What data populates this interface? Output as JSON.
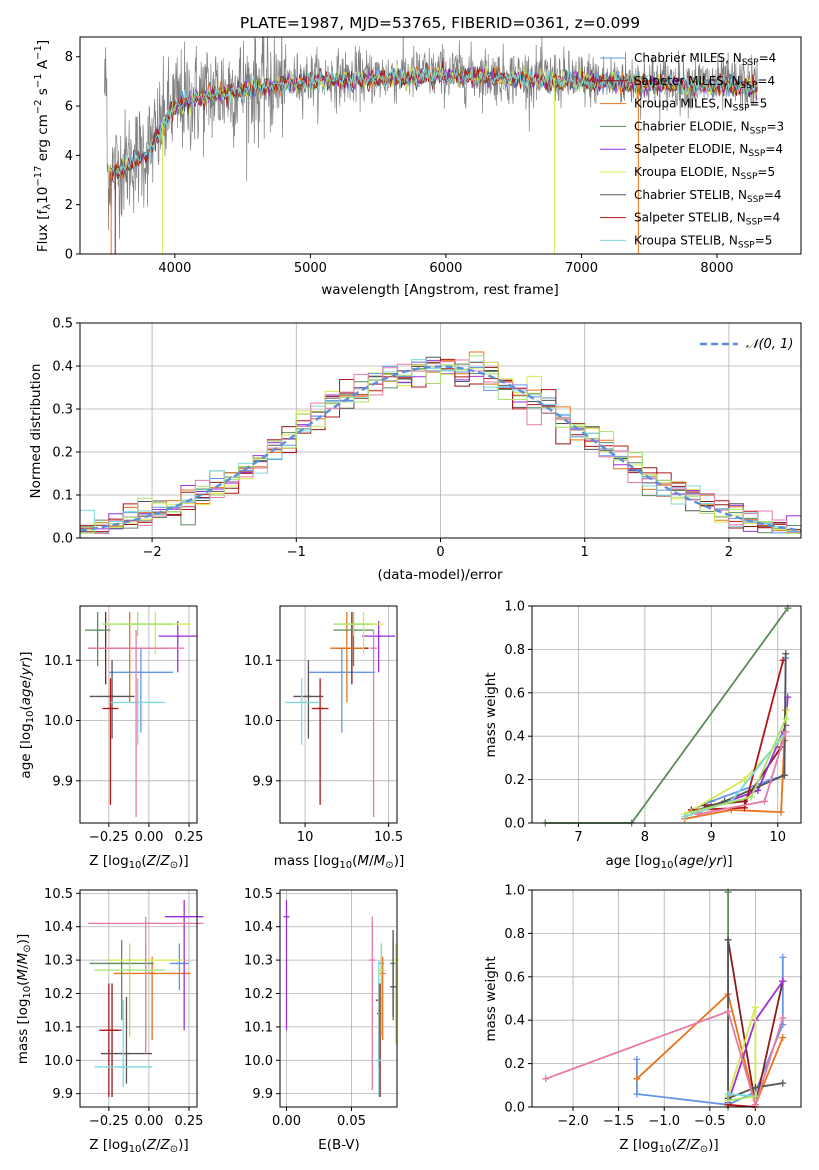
{
  "colors": [
    "#6495ed",
    "#8b1a1a",
    "#e8731a",
    "#5b8c5a",
    "#9b30d9",
    "#d6e84c",
    "#555555",
    "#b31515",
    "#7dd9dc",
    "#e87aa8",
    "#a6e36a"
  ],
  "chart_data": [
    {
      "type": "line",
      "title": "PLATE=1987, MJD=53765, FIBERID=0361, z=0.099",
      "xlabel": "wavelength [Angstrom, rest frame]",
      "ylabel": "Flux [f_λ 10^-17 erg cm^-2 s^-1 A^-1]",
      "xlim": [
        3300,
        8620
      ],
      "ylim": [
        0,
        8.8
      ],
      "xticks": [
        4000,
        5000,
        6000,
        7000,
        8000
      ],
      "yticks": [
        0,
        2,
        4,
        6,
        8
      ],
      "spectrum_continuum": [
        [
          3500,
          3.2
        ],
        [
          3800,
          4.2
        ],
        [
          4000,
          6.1
        ],
        [
          4300,
          6.6
        ],
        [
          4700,
          6.9
        ],
        [
          5000,
          7.1
        ],
        [
          5500,
          7.2
        ],
        [
          6000,
          7.35
        ],
        [
          6500,
          7.2
        ],
        [
          7000,
          7.1
        ],
        [
          7500,
          7.0
        ],
        [
          8000,
          6.9
        ],
        [
          8300,
          6.85
        ]
      ],
      "legend_position": "upper right",
      "series": [
        {
          "name": "Chabrier MILES",
          "nssp": "4"
        },
        {
          "name": "Salpeter MILES",
          "nssp": "4"
        },
        {
          "name": "Kroupa MILES",
          "nssp": "5"
        },
        {
          "name": "Chabrier ELODIE",
          "nssp": "3"
        },
        {
          "name": "Salpeter ELODIE",
          "nssp": "4"
        },
        {
          "name": "Kroupa ELODIE",
          "nssp": "5"
        },
        {
          "name": "Chabrier STELIB",
          "nssp": "4"
        },
        {
          "name": "Salpeter STELIB",
          "nssp": "4"
        },
        {
          "name": "Kroupa STELIB",
          "nssp": "5"
        }
      ]
    },
    {
      "type": "histogram",
      "xlabel": "(data-model)/error",
      "ylabel": "Normed distribution",
      "xlim": [
        -2.5,
        2.5
      ],
      "ylim": [
        0,
        0.5
      ],
      "xticks": [
        -2,
        -1,
        0,
        1,
        2
      ],
      "yticks": [
        0.0,
        0.1,
        0.2,
        0.3,
        0.4,
        0.5
      ],
      "legend": "N(0, 1)",
      "legend_position": "upper right",
      "bin_width": 0.1,
      "bin_start": -2.5
    },
    {
      "type": "errorbar",
      "xlabel": "Z [log10(Z/Z☉)]",
      "ylabel": "age  [log10(age/yr)]",
      "xlim": [
        -0.43,
        0.3
      ],
      "ylim": [
        9.83,
        10.19
      ],
      "xticks": [
        -0.25,
        0.0,
        0.25
      ],
      "xticklabels": [
        "−0.25",
        "0.00",
        "0.25"
      ],
      "yticks": [
        9.9,
        10.0,
        10.1
      ],
      "points": [
        {
          "x": -0.05,
          "y": 10.08,
          "xerr": 0.2,
          "yerr": [
            0.1,
            0.04
          ]
        },
        {
          "x": -0.27,
          "y": 10.12,
          "xerr": 0.08,
          "yerr": [
            0.06,
            0.06
          ]
        },
        {
          "x": -0.12,
          "y": 10.12,
          "xerr": 0.25,
          "yerr": [
            0.09,
            0.06
          ]
        },
        {
          "x": -0.32,
          "y": 10.15,
          "xerr": 0.08,
          "yerr": [
            0.06,
            0.03
          ]
        },
        {
          "x": 0.18,
          "y": 10.14,
          "xerr": 0.12,
          "yerr": [
            0.06,
            0.025
          ]
        },
        {
          "x": 0.04,
          "y": 10.16,
          "xerr": 0.22,
          "yerr": [
            0.05,
            0.02
          ]
        },
        {
          "x": -0.23,
          "y": 10.04,
          "xerr": 0.14,
          "yerr": [
            0.07,
            0.06
          ]
        },
        {
          "x": -0.24,
          "y": 10.02,
          "xerr": 0.05,
          "yerr": [
            0.16,
            0.05
          ]
        },
        {
          "x": -0.07,
          "y": 10.03,
          "xerr": 0.17,
          "yerr": [
            0.07,
            0.04
          ]
        },
        {
          "x": -0.08,
          "y": 10.12,
          "xerr": 0.3,
          "yerr": [
            0.28,
            0.03
          ]
        },
        {
          "x": -0.07,
          "y": 10.16,
          "xerr": 0.22,
          "yerr": [
            0.02,
            0.02
          ]
        }
      ]
    },
    {
      "type": "errorbar",
      "xlabel": "mass [log10(M/M☉)]",
      "ylabel": "",
      "xlim": [
        9.85,
        10.55
      ],
      "ylim": [
        9.83,
        10.19
      ],
      "xticks": [
        10.0,
        10.5
      ],
      "yticks": [
        9.9,
        10.0,
        10.1
      ],
      "points": [
        {
          "x": 10.22,
          "y": 10.08,
          "xerr": 0.2,
          "yerr": [
            0.1,
            0.04
          ]
        },
        {
          "x": 10.28,
          "y": 10.12,
          "xerr": 0.1,
          "yerr": [
            0.06,
            0.06
          ]
        },
        {
          "x": 10.25,
          "y": 10.12,
          "xerr": 0.1,
          "yerr": [
            0.09,
            0.06
          ]
        },
        {
          "x": 10.29,
          "y": 10.15,
          "xerr": 0.12,
          "yerr": [
            0.06,
            0.03
          ]
        },
        {
          "x": 10.44,
          "y": 10.14,
          "xerr": 0.1,
          "yerr": [
            0.06,
            0.025
          ]
        },
        {
          "x": 10.35,
          "y": 10.16,
          "xerr": 0.12,
          "yerr": [
            0.05,
            0.02
          ]
        },
        {
          "x": 10.02,
          "y": 10.04,
          "xerr": 0.09,
          "yerr": [
            0.07,
            0.06
          ]
        },
        {
          "x": 10.09,
          "y": 10.02,
          "xerr": 0.05,
          "yerr": [
            0.16,
            0.05
          ]
        },
        {
          "x": 9.98,
          "y": 10.03,
          "xerr": 0.1,
          "yerr": [
            0.07,
            0.04
          ]
        },
        {
          "x": 10.41,
          "y": 10.12,
          "xerr": 0.02,
          "yerr": [
            0.28,
            0.03
          ]
        },
        {
          "x": 10.29,
          "y": 10.16,
          "xerr": 0.12,
          "yerr": [
            0.02,
            0.02
          ]
        }
      ]
    },
    {
      "type": "line",
      "xlabel": "age  [log10(age/yr)]",
      "ylabel": "mass weight",
      "xlim": [
        6.3,
        10.35
      ],
      "ylim": [
        0,
        1
      ],
      "xticks": [
        7,
        8,
        9,
        10
      ],
      "yticks": [
        0.0,
        0.2,
        0.4,
        0.6,
        0.8,
        1.0
      ],
      "series": [
        {
          "x": [
            8.7,
            9.0,
            9.9,
            10.1,
            10.12
          ],
          "y": [
            0.06,
            0.1,
            0.2,
            0.22,
            0.76
          ]
        },
        {
          "x": [
            8.9,
            9.5,
            10.05,
            10.1
          ],
          "y": [
            0.08,
            0.1,
            0.35,
            0.42
          ]
        },
        {
          "x": [
            8.6,
            9.3,
            10.05,
            10.1,
            10.12
          ],
          "y": [
            0.02,
            0.06,
            0.05,
            0.38,
            0.52
          ]
        },
        {
          "x": [
            6.5,
            7.8,
            10.15
          ],
          "y": [
            0.0,
            0.0,
            0.99
          ]
        },
        {
          "x": [
            8.8,
            9.7,
            10.12,
            10.15
          ],
          "y": [
            0.05,
            0.15,
            0.45,
            0.58
          ]
        },
        {
          "x": [
            8.6,
            9.5,
            10.1,
            10.14
          ],
          "y": [
            0.04,
            0.2,
            0.4,
            0.52
          ]
        },
        {
          "x": [
            8.7,
            9.2,
            10.1,
            10.12
          ],
          "y": [
            0.05,
            0.1,
            0.22,
            0.78
          ]
        },
        {
          "x": [
            8.7,
            9.5,
            10.08
          ],
          "y": [
            0.06,
            0.07,
            0.75
          ]
        },
        {
          "x": [
            8.6,
            9.3,
            10.12
          ],
          "y": [
            0.03,
            0.1,
            0.42
          ]
        },
        {
          "x": [
            8.8,
            9.8,
            10.12
          ],
          "y": [
            0.04,
            0.1,
            0.42
          ]
        },
        {
          "x": [
            8.7,
            9.6,
            10.12
          ],
          "y": [
            0.05,
            0.12,
            0.48
          ]
        }
      ]
    },
    {
      "type": "errorbar",
      "xlabel": "Z [log10(Z/Z☉)]",
      "ylabel": "mass [log10(M/M☉)]",
      "xlim": [
        -0.43,
        0.3
      ],
      "ylim": [
        9.86,
        10.51
      ],
      "xticks": [
        -0.25,
        0.0,
        0.25
      ],
      "xticklabels": [
        "−0.25",
        "0.00",
        "0.25"
      ],
      "yticks": [
        9.9,
        10.0,
        10.1,
        10.2,
        10.3,
        10.4,
        10.5
      ],
      "points": [
        {
          "x": 0.19,
          "y": 10.29,
          "xerr": 0.06,
          "yerr": [
            0.08,
            0.06
          ]
        },
        {
          "x": -0.23,
          "y": 10.09,
          "xerr": 0.06,
          "yerr": [
            0.2,
            0.14
          ]
        },
        {
          "x": 0.02,
          "y": 10.26,
          "xerr": 0.24,
          "yerr": [
            0.2,
            0.05
          ]
        },
        {
          "x": -0.17,
          "y": 10.29,
          "xerr": 0.2,
          "yerr": [
            0.17,
            0.07
          ]
        },
        {
          "x": 0.22,
          "y": 10.43,
          "xerr": 0.12,
          "yerr": [
            0.34,
            0.05
          ]
        },
        {
          "x": -0.02,
          "y": 10.3,
          "xerr": 0.24,
          "yerr": [
            0.25,
            0.05
          ]
        },
        {
          "x": -0.14,
          "y": 10.02,
          "xerr": 0.16,
          "yerr": [
            0.09,
            0.17
          ]
        },
        {
          "x": -0.25,
          "y": 10.09,
          "xerr": 0.06,
          "yerr": [
            0.2,
            0.14
          ]
        },
        {
          "x": -0.16,
          "y": 9.98,
          "xerr": 0.18,
          "yerr": [
            0.06,
            0.2
          ]
        },
        {
          "x": -0.02,
          "y": 10.41,
          "xerr": 0.36,
          "yerr": [
            0.39,
            0.02
          ]
        },
        {
          "x": -0.12,
          "y": 10.27,
          "xerr": 0.22,
          "yerr": [
            0.2,
            0.08
          ]
        }
      ]
    },
    {
      "type": "errorbar",
      "xlabel": "E(B-V)",
      "ylabel": "",
      "xlim": [
        -0.005,
        0.085
      ],
      "ylim": [
        9.86,
        10.51
      ],
      "xticks": [
        0.0,
        0.05
      ],
      "xticklabels": [
        "0.00",
        "0.05"
      ],
      "yticks": [
        9.9,
        10.0,
        10.1,
        10.2,
        10.3,
        10.4,
        10.5
      ],
      "points": [
        {
          "x": 0.073,
          "y": 10.29,
          "yerr": [
            0.08,
            0.06
          ]
        },
        {
          "x": 0.072,
          "y": 10.14,
          "yerr": [
            0.25,
            0.09
          ]
        },
        {
          "x": 0.074,
          "y": 10.26,
          "yerr": [
            0.2,
            0.05
          ]
        },
        {
          "x": 0.082,
          "y": 10.29,
          "yerr": [
            0.17,
            0.07
          ]
        },
        {
          "x": 0.0,
          "y": 10.43,
          "yerr": [
            0.34,
            0.05
          ]
        },
        {
          "x": 0.084,
          "y": 10.3,
          "yerr": [
            0.25,
            0.05
          ]
        },
        {
          "x": 0.082,
          "y": 10.22,
          "yerr": [
            0.09,
            0.17
          ]
        },
        {
          "x": 0.071,
          "y": 10.18,
          "yerr": [
            0.2,
            0.05
          ]
        },
        {
          "x": 0.071,
          "y": 10.0,
          "yerr": [
            0.11,
            0.3
          ]
        },
        {
          "x": 0.066,
          "y": 10.3,
          "yerr": [
            0.39,
            0.13
          ]
        },
        {
          "x": 0.073,
          "y": 10.27,
          "yerr": [
            0.2,
            0.08
          ]
        }
      ]
    },
    {
      "type": "line",
      "xlabel": "Z [log10(Z/Z☉)]",
      "ylabel": "mass weight",
      "xlim": [
        -2.45,
        0.5
      ],
      "ylim": [
        0,
        1
      ],
      "xticks": [
        -2.0,
        -1.5,
        -1.0,
        -0.5,
        0.0
      ],
      "xticklabels": [
        "−2.0",
        "−1.5",
        "−1.0",
        "−0.5",
        "0.0"
      ],
      "yticks": [
        0.0,
        0.2,
        0.4,
        0.6,
        0.8,
        1.0
      ],
      "series": [
        {
          "x": [
            -1.3,
            -1.3,
            -0.3,
            0.0,
            0.3,
            0.3
          ],
          "y": [
            0.22,
            0.06,
            0.01,
            0.07,
            0.38,
            0.69
          ]
        },
        {
          "x": [
            -0.3,
            0.0,
            0.3
          ],
          "y": [
            0.77,
            0.01,
            0.58
          ]
        },
        {
          "x": [
            -1.3,
            -0.3,
            0.0,
            0.3
          ],
          "y": [
            0.13,
            0.52,
            0.01,
            0.32
          ]
        },
        {
          "x": [
            -0.3,
            -0.3
          ],
          "y": [
            0.99,
            0.0
          ]
        },
        {
          "x": [
            -0.3,
            0.0,
            0.3
          ],
          "y": [
            0.02,
            0.4,
            0.58
          ]
        },
        {
          "x": [
            -0.3,
            0.0,
            0.0
          ],
          "y": [
            0.05,
            0.46,
            0.03
          ]
        },
        {
          "x": [
            -0.3,
            -0.3,
            0.0,
            0.3
          ],
          "y": [
            0.77,
            0.04,
            0.09,
            0.11
          ]
        },
        {
          "x": [
            -0.3,
            0.0
          ],
          "y": [
            0.01,
            0.0
          ]
        },
        {
          "x": [
            -0.3,
            0.0
          ],
          "y": [
            0.06,
            0.05
          ]
        },
        {
          "x": [
            -2.3,
            -0.3,
            0.0,
            0.3
          ],
          "y": [
            0.13,
            0.44,
            0.01,
            0.41
          ]
        },
        {
          "x": [
            -0.3,
            0.0
          ],
          "y": [
            0.03,
            0.05
          ]
        }
      ]
    }
  ]
}
